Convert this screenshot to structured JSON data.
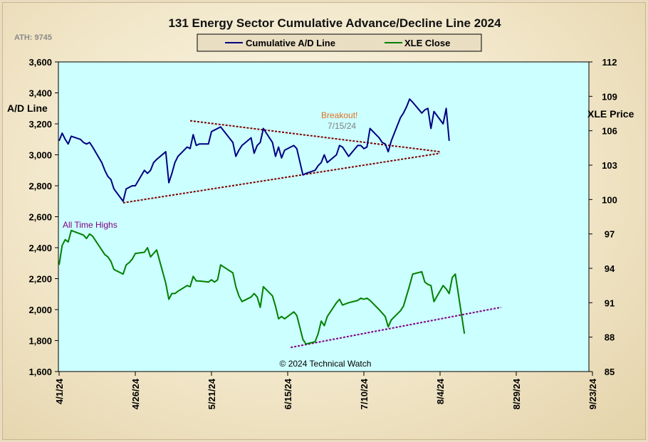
{
  "chart_data": {
    "type": "line",
    "title": "131 Energy Sector Cumulative Advance/Decline Line 2024",
    "ath_label": "ATH: 9745",
    "copyright": "© 2024 Technical Watch",
    "left_axis": {
      "label": "A/D Line",
      "min": 1600,
      "max": 3600,
      "ticks": [
        "1,600",
        "1,800",
        "2,000",
        "2,200",
        "2,400",
        "2,600",
        "2,800",
        "3,000",
        "3,200",
        "3,400",
        "3,600"
      ]
    },
    "right_axis": {
      "label": "XLE Price",
      "min": 85,
      "max": 112,
      "ticks": [
        "85",
        "88",
        "91",
        "94",
        "97",
        "100",
        "103",
        "106",
        "109",
        "112"
      ]
    },
    "x_axis": {
      "ticks": [
        "4/1/24",
        "4/26/24",
        "5/21/24",
        "6/15/24",
        "7/10/24",
        "8/4/24",
        "8/29/24",
        "9/23/24"
      ]
    },
    "legend": {
      "position": "top-center",
      "items": [
        {
          "name": "Cumulative A/D Line",
          "color": "#000080"
        },
        {
          "name": "XLE Close",
          "color": "#008000"
        }
      ]
    },
    "grid": false,
    "plot_background": "#ccffff",
    "annotations": [
      {
        "text": "Breakout!",
        "color": "#e07020"
      },
      {
        "text": "7/15/24",
        "color": "#7f7f7f"
      },
      {
        "text": "All Time Highs",
        "color": "#800080"
      }
    ],
    "series": [
      {
        "name": "Cumulative A/D Line",
        "axis": "left",
        "color": "#000080",
        "points": [
          [
            "4/1/24",
            3090
          ],
          [
            "4/2/24",
            3140
          ],
          [
            "4/3/24",
            3100
          ],
          [
            "4/4/24",
            3070
          ],
          [
            "4/5/24",
            3120
          ],
          [
            "4/8/24",
            3100
          ],
          [
            "4/9/24",
            3080
          ],
          [
            "4/10/24",
            3070
          ],
          [
            "4/11/24",
            3080
          ],
          [
            "4/12/24",
            3050
          ],
          [
            "4/15/24",
            2950
          ],
          [
            "4/16/24",
            2900
          ],
          [
            "4/17/24",
            2860
          ],
          [
            "4/18/24",
            2840
          ],
          [
            "4/19/24",
            2780
          ],
          [
            "4/22/24",
            2700
          ],
          [
            "4/23/24",
            2780
          ],
          [
            "4/24/24",
            2790
          ],
          [
            "4/25/24",
            2800
          ],
          [
            "4/26/24",
            2800
          ],
          [
            "4/29/24",
            2900
          ],
          [
            "4/30/24",
            2880
          ],
          [
            "5/1/24",
            2900
          ],
          [
            "5/2/24",
            2950
          ],
          [
            "5/3/24",
            2970
          ],
          [
            "5/6/24",
            3020
          ],
          [
            "5/7/24",
            2820
          ],
          [
            "5/8/24",
            2880
          ],
          [
            "5/9/24",
            2950
          ],
          [
            "5/10/24",
            2990
          ],
          [
            "5/13/24",
            3050
          ],
          [
            "5/14/24",
            3040
          ],
          [
            "5/15/24",
            3130
          ],
          [
            "5/16/24",
            3060
          ],
          [
            "5/17/24",
            3070
          ],
          [
            "5/20/24",
            3070
          ],
          [
            "5/21/24",
            3150
          ],
          [
            "5/22/24",
            3160
          ],
          [
            "5/23/24",
            3170
          ],
          [
            "5/24/24",
            3180
          ],
          [
            "5/28/24",
            3080
          ],
          [
            "5/29/24",
            2990
          ],
          [
            "5/30/24",
            3030
          ],
          [
            "5/31/24",
            3060
          ],
          [
            "6/3/24",
            3110
          ],
          [
            "6/4/24",
            3010
          ],
          [
            "6/5/24",
            3060
          ],
          [
            "6/6/24",
            3080
          ],
          [
            "6/7/24",
            3170
          ],
          [
            "6/10/24",
            3080
          ],
          [
            "6/11/24",
            2990
          ],
          [
            "6/12/24",
            3050
          ],
          [
            "6/13/24",
            2980
          ],
          [
            "6/14/24",
            3030
          ],
          [
            "6/17/24",
            3060
          ],
          [
            "6/18/24",
            3040
          ],
          [
            "6/20/24",
            2870
          ],
          [
            "6/21/24",
            2880
          ],
          [
            "6/24/24",
            2900
          ],
          [
            "6/25/24",
            2930
          ],
          [
            "6/26/24",
            2950
          ],
          [
            "6/27/24",
            3000
          ],
          [
            "6/28/24",
            2950
          ],
          [
            "7/1/24",
            3000
          ],
          [
            "7/2/24",
            3060
          ],
          [
            "7/3/24",
            3050
          ],
          [
            "7/5/24",
            2990
          ],
          [
            "7/8/24",
            3060
          ],
          [
            "7/9/24",
            3060
          ],
          [
            "7/10/24",
            3040
          ],
          [
            "7/11/24",
            3050
          ],
          [
            "7/12/24",
            3170
          ],
          [
            "7/15/24",
            3110
          ],
          [
            "7/16/24",
            3080
          ],
          [
            "7/17/24",
            3070
          ],
          [
            "7/18/24",
            3020
          ],
          [
            "7/19/24",
            3090
          ],
          [
            "7/22/24",
            3240
          ],
          [
            "7/23/24",
            3270
          ],
          [
            "7/24/24",
            3310
          ],
          [
            "7/25/24",
            3360
          ],
          [
            "7/26/24",
            3340
          ],
          [
            "7/29/24",
            3270
          ],
          [
            "7/30/24",
            3290
          ],
          [
            "7/31/24",
            3300
          ],
          [
            "8/1/24",
            3170
          ],
          [
            "8/2/24",
            3280
          ],
          [
            "8/5/24",
            3200
          ],
          [
            "8/6/24",
            3300
          ],
          [
            "8/7/24",
            3090
          ]
        ]
      },
      {
        "name": "XLE Close",
        "axis": "right",
        "color": "#008000",
        "points": [
          [
            "4/1/24",
            94.3
          ],
          [
            "4/2/24",
            96.0
          ],
          [
            "4/3/24",
            96.5
          ],
          [
            "4/4/24",
            96.3
          ],
          [
            "4/5/24",
            97.3
          ],
          [
            "4/8/24",
            97.0
          ],
          [
            "4/9/24",
            96.9
          ],
          [
            "4/10/24",
            96.6
          ],
          [
            "4/11/24",
            97.0
          ],
          [
            "4/12/24",
            96.8
          ],
          [
            "4/15/24",
            95.6
          ],
          [
            "4/16/24",
            95.2
          ],
          [
            "4/17/24",
            95.0
          ],
          [
            "4/18/24",
            94.6
          ],
          [
            "4/19/24",
            93.9
          ],
          [
            "4/22/24",
            93.5
          ],
          [
            "4/23/24",
            94.3
          ],
          [
            "4/24/24",
            94.5
          ],
          [
            "4/25/24",
            94.8
          ],
          [
            "4/26/24",
            95.3
          ],
          [
            "4/29/24",
            95.4
          ],
          [
            "4/30/24",
            95.8
          ],
          [
            "5/1/24",
            95.0
          ],
          [
            "5/2/24",
            95.3
          ],
          [
            "5/3/24",
            95.6
          ],
          [
            "5/6/24",
            92.7
          ],
          [
            "5/7/24",
            91.3
          ],
          [
            "5/8/24",
            91.8
          ],
          [
            "5/9/24",
            91.8
          ],
          [
            "5/10/24",
            92.0
          ],
          [
            "5/13/24",
            92.5
          ],
          [
            "5/14/24",
            92.4
          ],
          [
            "5/15/24",
            93.3
          ],
          [
            "5/16/24",
            92.9
          ],
          [
            "5/17/24",
            92.9
          ],
          [
            "5/20/24",
            92.8
          ],
          [
            "5/21/24",
            93.0
          ],
          [
            "5/22/24",
            92.8
          ],
          [
            "5/23/24",
            93.0
          ],
          [
            "5/24/24",
            94.3
          ],
          [
            "5/28/24",
            93.6
          ],
          [
            "5/29/24",
            92.4
          ],
          [
            "5/30/24",
            91.6
          ],
          [
            "5/31/24",
            91.1
          ],
          [
            "6/3/24",
            91.5
          ],
          [
            "6/4/24",
            91.8
          ],
          [
            "6/5/24",
            91.5
          ],
          [
            "6/6/24",
            90.6
          ],
          [
            "6/7/24",
            92.4
          ],
          [
            "6/10/24",
            91.6
          ],
          [
            "6/11/24",
            90.7
          ],
          [
            "6/12/24",
            89.6
          ],
          [
            "6/13/24",
            89.8
          ],
          [
            "6/14/24",
            89.6
          ],
          [
            "6/17/24",
            90.2
          ],
          [
            "6/18/24",
            89.9
          ],
          [
            "6/20/24",
            87.8
          ],
          [
            "6/21/24",
            87.4
          ],
          [
            "6/24/24",
            87.6
          ],
          [
            "6/25/24",
            88.3
          ],
          [
            "6/26/24",
            89.4
          ],
          [
            "6/27/24",
            89.0
          ],
          [
            "6/28/24",
            89.8
          ],
          [
            "7/1/24",
            91.0
          ],
          [
            "7/2/24",
            91.3
          ],
          [
            "7/3/24",
            90.8
          ],
          [
            "7/5/24",
            91.0
          ],
          [
            "7/8/24",
            91.2
          ],
          [
            "7/9/24",
            91.4
          ],
          [
            "7/10/24",
            91.3
          ],
          [
            "7/11/24",
            91.4
          ],
          [
            "7/12/24",
            91.2
          ],
          [
            "7/15/24",
            90.4
          ],
          [
            "7/16/24",
            90.1
          ],
          [
            "7/17/24",
            89.8
          ],
          [
            "7/18/24",
            88.9
          ],
          [
            "7/19/24",
            89.5
          ],
          [
            "7/22/24",
            90.3
          ],
          [
            "7/23/24",
            90.7
          ],
          [
            "7/24/24",
            91.6
          ],
          [
            "7/25/24",
            92.5
          ],
          [
            "7/26/24",
            93.5
          ],
          [
            "7/29/24",
            93.7
          ],
          [
            "7/30/24",
            92.8
          ],
          [
            "7/31/24",
            92.6
          ],
          [
            "8/1/24",
            92.5
          ],
          [
            "8/2/24",
            91.1
          ],
          [
            "8/5/24",
            92.5
          ],
          [
            "8/6/24",
            92.2
          ],
          [
            "8/7/24",
            91.8
          ],
          [
            "8/8/24",
            93.2
          ],
          [
            "8/9/24",
            93.5
          ],
          [
            "8/12/24",
            88.3
          ]
        ]
      }
    ],
    "trendlines": [
      {
        "axis": "left",
        "color": "#800000",
        "style": "dashed",
        "from": [
          "5/14/24",
          3220
        ],
        "to": [
          "8/4/24",
          3020
        ]
      },
      {
        "axis": "left",
        "color": "#800000",
        "style": "dashed",
        "from": [
          "4/22/24",
          2690
        ],
        "to": [
          "8/4/24",
          3010
        ]
      },
      {
        "axis": "right",
        "color": "#800080",
        "style": "dashed",
        "from": [
          "6/16/24",
          87.1
        ],
        "to": [
          "8/24/24",
          90.6
        ]
      }
    ]
  }
}
